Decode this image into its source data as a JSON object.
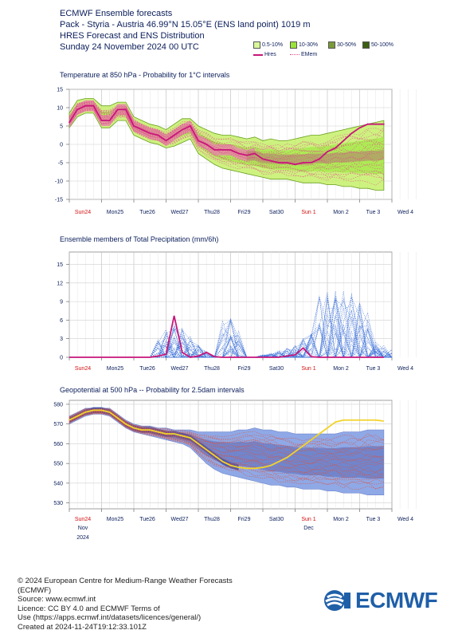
{
  "header": {
    "line1": "ECMWF Ensemble forecasts",
    "line2": "Pack - Styria - Austria 46.99°N 15.05°E (ENS land point) 1019 m",
    "line3": "HRES Forecast and ENS Distribution",
    "line4": "Sunday 24 November 2024 00 UTC"
  },
  "legend": {
    "items": [
      {
        "label": "0.5-10%",
        "color": "#d8f79a"
      },
      {
        "label": "10-30%",
        "color": "#9be33a"
      },
      {
        "label": "30-50%",
        "color": "#7a9a3a"
      },
      {
        "label": "50-100%",
        "color": "#3d6010"
      }
    ],
    "hres_label": "Hres",
    "emem_label": "EMem"
  },
  "colors": {
    "hres": "#c8167a",
    "members_precip": "#3a6fd8",
    "z500_band": "#8fa8e6",
    "z500_core": "#4b59a8",
    "z500_hres": "#f2d32a",
    "t850_band": "#c6f06a",
    "t850_core": "#e68aa8",
    "emem": "#e0508a"
  },
  "x_labels": [
    {
      "label": "Sun24",
      "red": true
    },
    {
      "label": "Mon25",
      "red": false
    },
    {
      "label": "Tue26",
      "red": false
    },
    {
      "label": "Wed27",
      "red": false
    },
    {
      "label": "Thu28",
      "red": false
    },
    {
      "label": "Fri29",
      "red": false
    },
    {
      "label": "Sat30",
      "red": false
    },
    {
      "label": "Sun 1",
      "red": true
    },
    {
      "label": "Mon 2",
      "red": false
    },
    {
      "label": "Tue 3",
      "red": false
    },
    {
      "label": "Wed 4",
      "red": false
    }
  ],
  "bottom_labels": {
    "nov": "Nov",
    "year": "2024",
    "dec": "Dec"
  },
  "chart_data": [
    {
      "type": "area",
      "title": "Temperature at 850 hPa - Probability for 1°C intervals",
      "y_ticks": [
        15,
        10,
        5,
        0,
        -5,
        -10,
        -15
      ],
      "ylim": [
        -15,
        15
      ],
      "x_days": [
        0,
        10
      ],
      "hres": {
        "x": [
          0,
          0.25,
          0.5,
          0.75,
          1.0,
          1.25,
          1.5,
          1.75,
          2.0,
          2.25,
          2.5,
          2.75,
          3.0,
          3.25,
          3.5,
          3.75,
          4.0,
          4.25,
          4.5,
          4.75,
          5.0,
          5.25,
          5.5,
          5.75,
          6.0,
          6.25,
          6.5,
          6.75,
          7.0,
          7.25,
          7.5,
          7.75,
          8.0,
          8.25,
          8.5,
          8.75,
          9.0,
          9.25,
          9.5,
          9.75
        ],
        "y": [
          6,
          9.5,
          10.5,
          10.5,
          6.5,
          6.5,
          9.5,
          9.5,
          5,
          4,
          3,
          2.5,
          1,
          2.5,
          4,
          5,
          1,
          0,
          -1.5,
          -1.5,
          -1.5,
          -2.5,
          -3,
          -2.5,
          -4,
          -4.5,
          -5,
          -5,
          -5.5,
          -5,
          -5,
          -4,
          -2,
          -1,
          1,
          3,
          4.5,
          5.5,
          5.5,
          5.5
        ]
      },
      "ens_spread_upper": [
        8,
        11.5,
        12,
        12,
        10,
        10,
        11,
        11,
        7,
        6,
        5,
        4.5,
        3.5,
        5,
        6.5,
        6.5,
        4.5,
        3.5,
        2.5,
        2,
        2,
        1.5,
        1,
        1.5,
        0.5,
        1,
        0.5,
        0.5,
        1,
        1.5,
        2,
        2,
        2.5,
        3,
        3.5,
        4,
        4.5,
        5,
        5.5,
        6
      ],
      "ens_spread_lower": [
        5,
        8,
        9,
        9,
        5,
        5,
        7,
        7,
        3,
        2,
        1,
        0.5,
        -0.5,
        0,
        1,
        2,
        -2,
        -3.5,
        -5,
        -6,
        -6.5,
        -7,
        -7.5,
        -8,
        -8.5,
        -9,
        -9,
        -9,
        -9.5,
        -10,
        -10,
        -10,
        -10.5,
        -10.5,
        -11,
        -11,
        -11.5,
        -11.5,
        -12,
        -12
      ]
    },
    {
      "type": "line",
      "title": "Ensemble members of Total Precipitation (mm/6h)",
      "y_ticks": [
        15,
        12,
        9,
        6,
        3,
        0
      ],
      "ylim": [
        0,
        17
      ],
      "hres": {
        "x": [
          0,
          0.5,
          1,
          1.5,
          2,
          2.5,
          2.75,
          3.0,
          3.25,
          3.5,
          3.75,
          4.0,
          4.25,
          4.5,
          4.75,
          5.0,
          5.5,
          6.0,
          6.5,
          7.0,
          7.25,
          7.5,
          7.75,
          8.0,
          8.5,
          9.0,
          9.5,
          9.75
        ],
        "y": [
          0,
          0,
          0,
          0,
          0,
          0,
          0.2,
          0.5,
          6.7,
          0.8,
          0,
          0.2,
          0.8,
          0.1,
          0,
          0,
          0,
          0,
          0,
          0.4,
          1.5,
          0.1,
          0,
          0,
          0,
          0,
          0,
          0
        ]
      },
      "member_peak_max": 15
    },
    {
      "type": "area",
      "title": "Geopotential at 500 hPa -- Probability for 2.5dam intervals",
      "y_ticks": [
        580,
        570,
        560,
        550,
        540,
        530
      ],
      "ylim": [
        527,
        582
      ],
      "hres": {
        "x": [
          0,
          0.25,
          0.5,
          0.75,
          1.0,
          1.25,
          1.5,
          1.75,
          2.0,
          2.25,
          2.5,
          2.75,
          3.0,
          3.25,
          3.5,
          3.75,
          4.0,
          4.25,
          4.5,
          4.75,
          5.0,
          5.25,
          5.5,
          5.75,
          6.0,
          6.25,
          6.5,
          6.75,
          7.0,
          7.25,
          7.5,
          7.75,
          8.0,
          8.25,
          8.5,
          8.75,
          9.0,
          9.25,
          9.5,
          9.75
        ],
        "y": [
          572,
          574,
          576,
          577,
          577,
          576,
          573,
          570,
          568,
          567,
          567,
          566,
          565,
          565,
          564,
          563,
          560,
          557,
          554,
          551,
          549,
          548,
          547.5,
          547.5,
          548,
          549,
          551,
          553,
          556,
          559,
          562,
          565,
          568,
          571,
          572,
          572,
          572,
          572,
          572,
          571.5
        ]
      },
      "ens_spread_upper": [
        574,
        576,
        578,
        578,
        578,
        578,
        575,
        572,
        570,
        569,
        569,
        568,
        568,
        567,
        567,
        567,
        566,
        566,
        566,
        566,
        566,
        567,
        567,
        568,
        567,
        567,
        566,
        566,
        565,
        565,
        565,
        565,
        565,
        565,
        566,
        566,
        566,
        567,
        567,
        567
      ],
      "ens_spread_lower": [
        570,
        572,
        574,
        575,
        575,
        574,
        571,
        568,
        566,
        565,
        564,
        563,
        562,
        561,
        560,
        558,
        554,
        550,
        547,
        545,
        544,
        543,
        542,
        541,
        540,
        539,
        539,
        538,
        538,
        537,
        537,
        537,
        536,
        536,
        535,
        535,
        535,
        534,
        534,
        534
      ]
    }
  ],
  "footer": {
    "line1": "© 2024 European Centre for Medium-Range Weather Forecasts",
    "line2": "(ECMWF)",
    "line3": "Source: www.ecmwf.int",
    "line4": "Licence: CC BY 4.0 and ECMWF Terms of",
    "line5": "Use (https://apps.ecmwf.int/datasets/licences/general/)",
    "line6": "Created at 2024-11-24T19:12:33.101Z"
  },
  "logo": {
    "text": "ECMWF"
  }
}
